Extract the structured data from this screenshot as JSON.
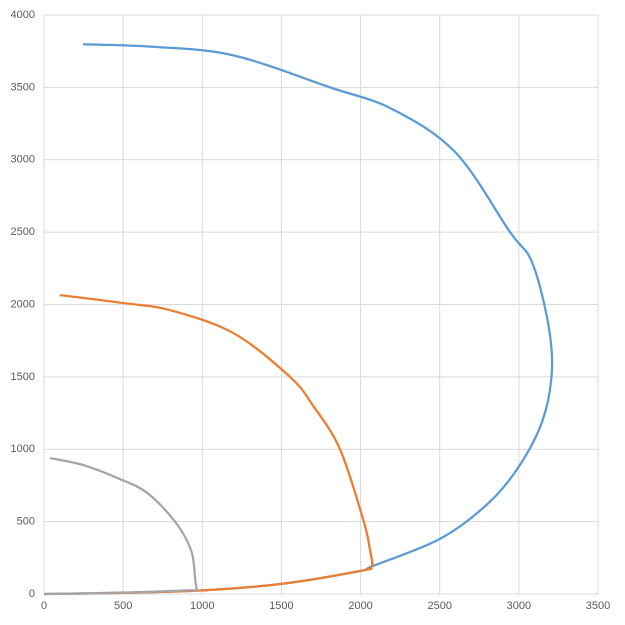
{
  "chart_data": {
    "type": "scatter-line",
    "xlim": [
      0,
      3500
    ],
    "xticks": [
      0,
      500,
      1000,
      1500,
      2000,
      2500,
      3000,
      3500
    ],
    "ylim": [
      0,
      4000
    ],
    "yticks": [
      0,
      500,
      1000,
      1500,
      2000,
      2500,
      3000,
      3500,
      4000
    ],
    "grid": true,
    "series": [
      {
        "color": "#5b9bd5",
        "x": [
          0,
          500,
          1000,
          1500,
          2000,
          2070,
          2500,
          2800,
          3000,
          3150,
          3209,
          3180,
          3080,
          2944,
          2600,
          2200,
          1807,
          1200,
          700,
          246
        ],
        "values": [
          0,
          8,
          25,
          70,
          160,
          190,
          380,
          620,
          880,
          1200,
          1550,
          1900,
          2300,
          2500,
          3050,
          3350,
          3500,
          3720,
          3780,
          3798
        ]
      },
      {
        "color": "#ed7d31",
        "x": [
          0,
          500,
          1000,
          1500,
          2000,
          2070,
          2060,
          2020,
          1870,
          1700,
          1554,
          1200,
          800,
          500,
          101
        ],
        "values": [
          0,
          8,
          25,
          70,
          160,
          190,
          300,
          500,
          1000,
          1300,
          1500,
          1800,
          1960,
          2010,
          2065
        ]
      },
      {
        "color": "#a5a5a5",
        "x": [
          0,
          500,
          900,
          960,
          955,
          930,
          828,
          650,
          467,
          250,
          38
        ],
        "values": [
          0,
          10,
          25,
          30,
          100,
          300,
          500,
          700,
          800,
          890,
          939
        ]
      }
    ]
  }
}
